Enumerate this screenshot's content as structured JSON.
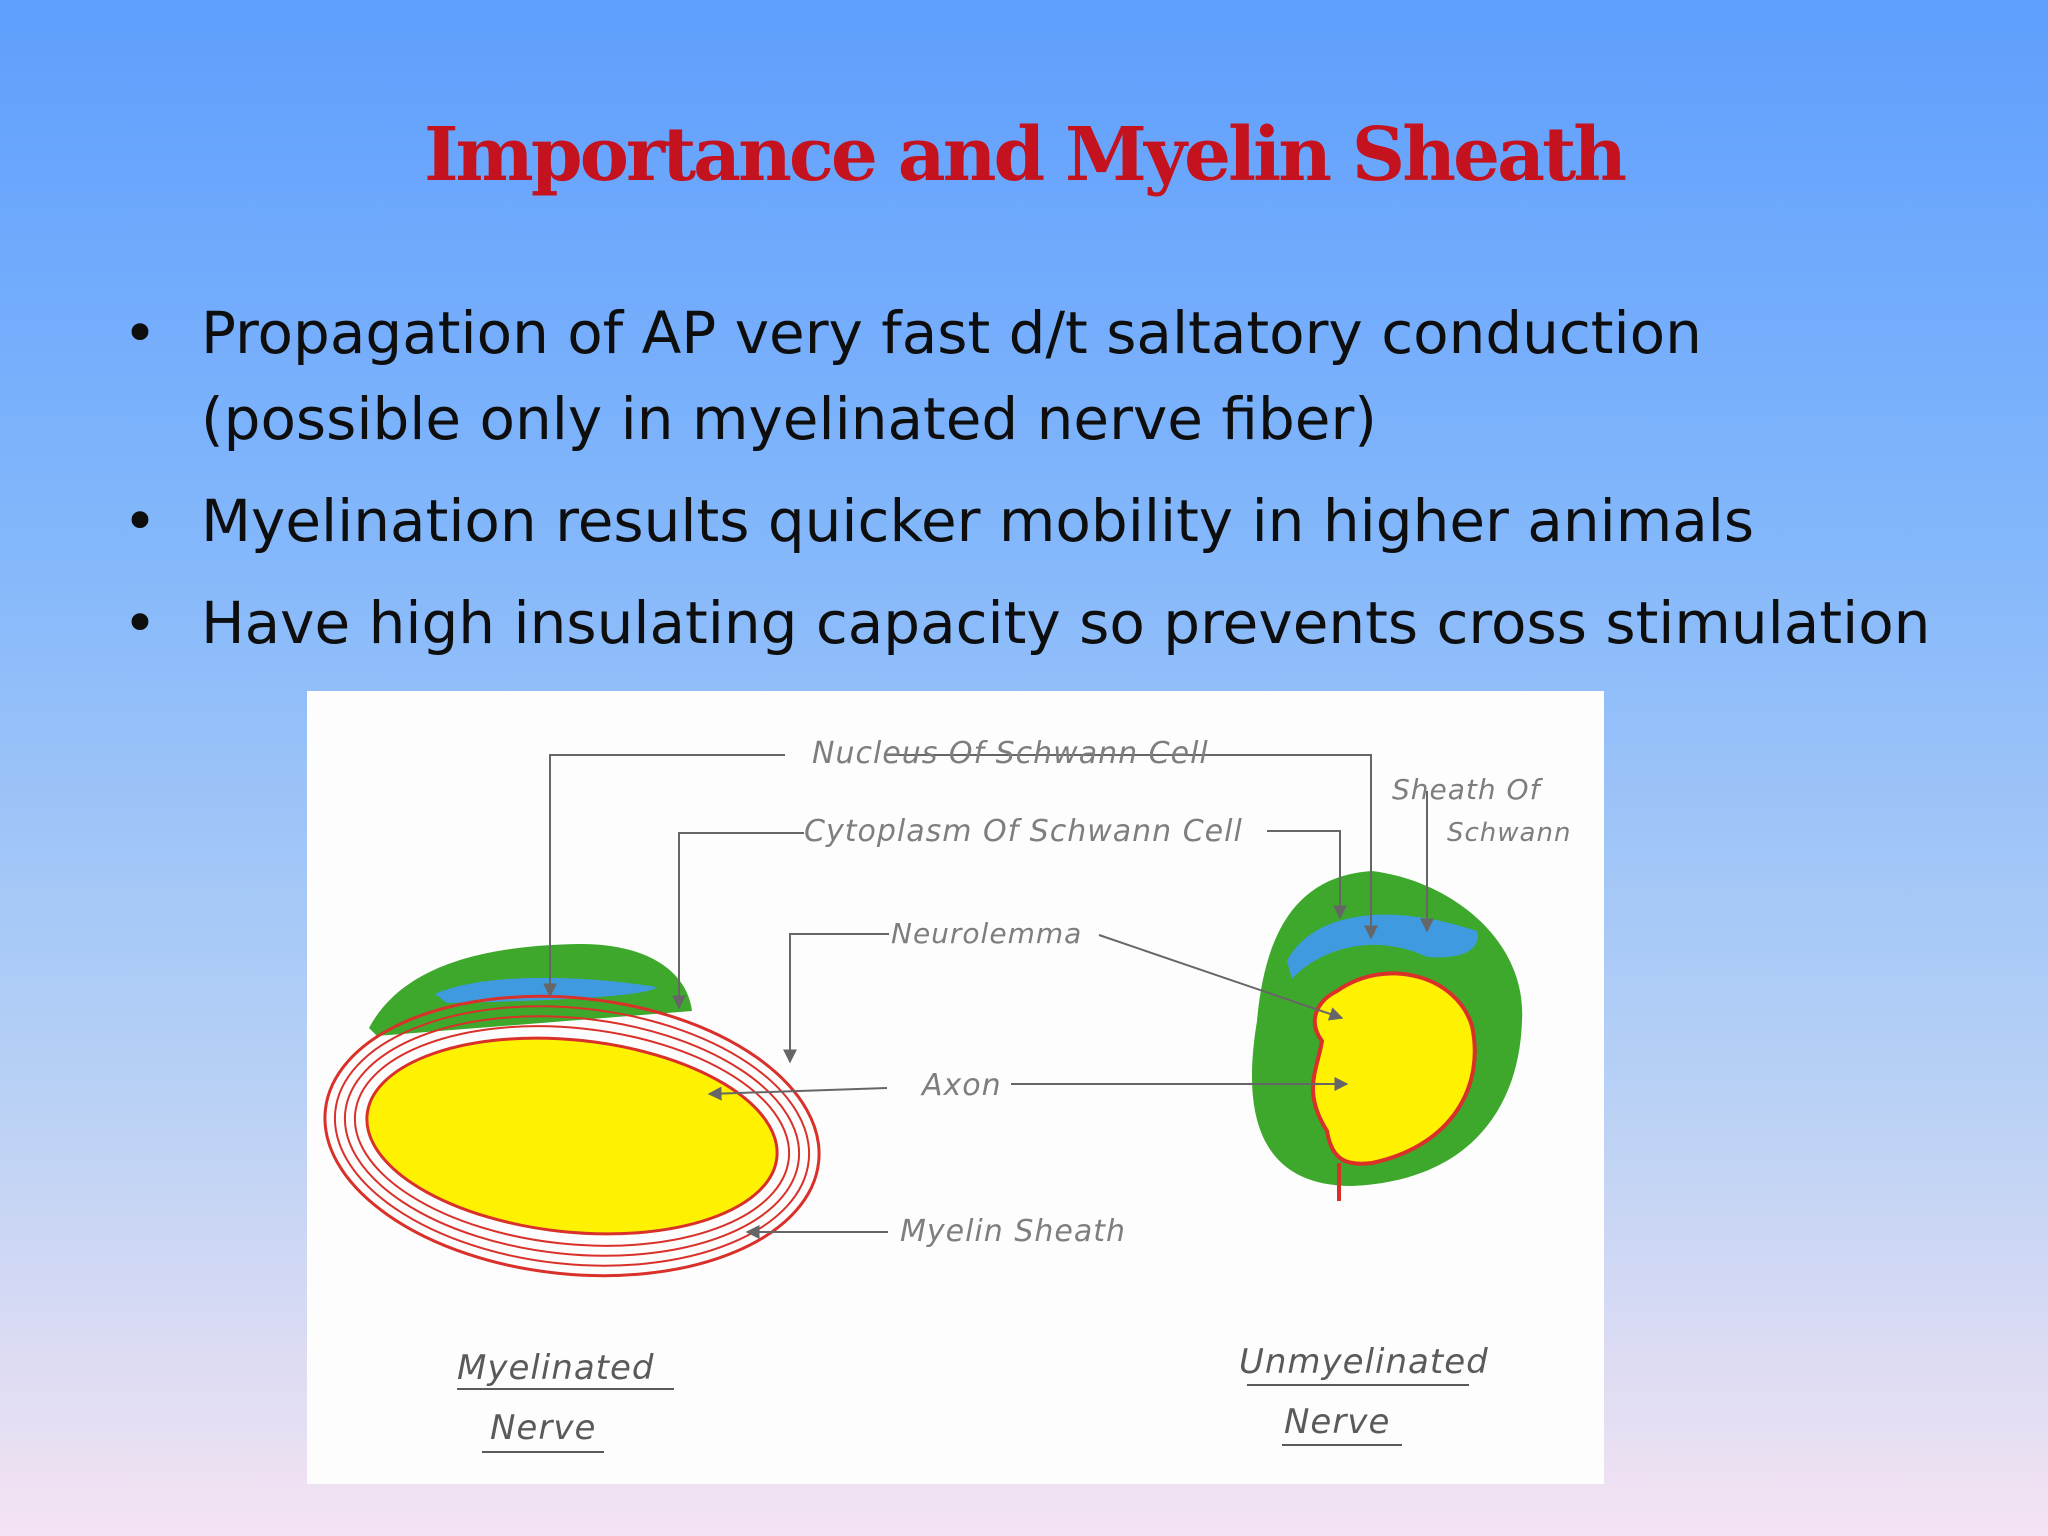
{
  "slide": {
    "title": "Importance and Myelin Sheath",
    "bullets": [
      {
        "line1": "Propagation of AP very fast d/t saltatory conduction",
        "line2": "(possible only in myelinated nerve fiber)"
      },
      {
        "line1": "Myelination results quicker mobility in higher animals"
      },
      {
        "line1": "Have high insulating capacity so prevents cross stimulation"
      }
    ],
    "bullet_symbol": "•"
  },
  "figure": {
    "labels": {
      "nucleus": "Nucleus Of Schwann Cell",
      "cytoplasm": "Cytoplasm Of Schwann Cell",
      "sheath_line1": "Sheath Of",
      "sheath_line2": "Schwann",
      "neurolemma": "Neurolemma",
      "axon": "Axon",
      "myelin": "Myelin Sheath"
    },
    "captions": {
      "myelinated_line1": "Myelinated",
      "myelinated_line2": "Nerve",
      "unmyelinated_line1": "Unmyelinated",
      "unmyelinated_line2": "Nerve"
    },
    "colors": {
      "axon": "#fff200",
      "schwann_cytoplasm": "#3ea82c",
      "nucleus": "#3f9ae0",
      "myelin_lines": "#d9302a",
      "leader_lines": "#666666"
    }
  }
}
